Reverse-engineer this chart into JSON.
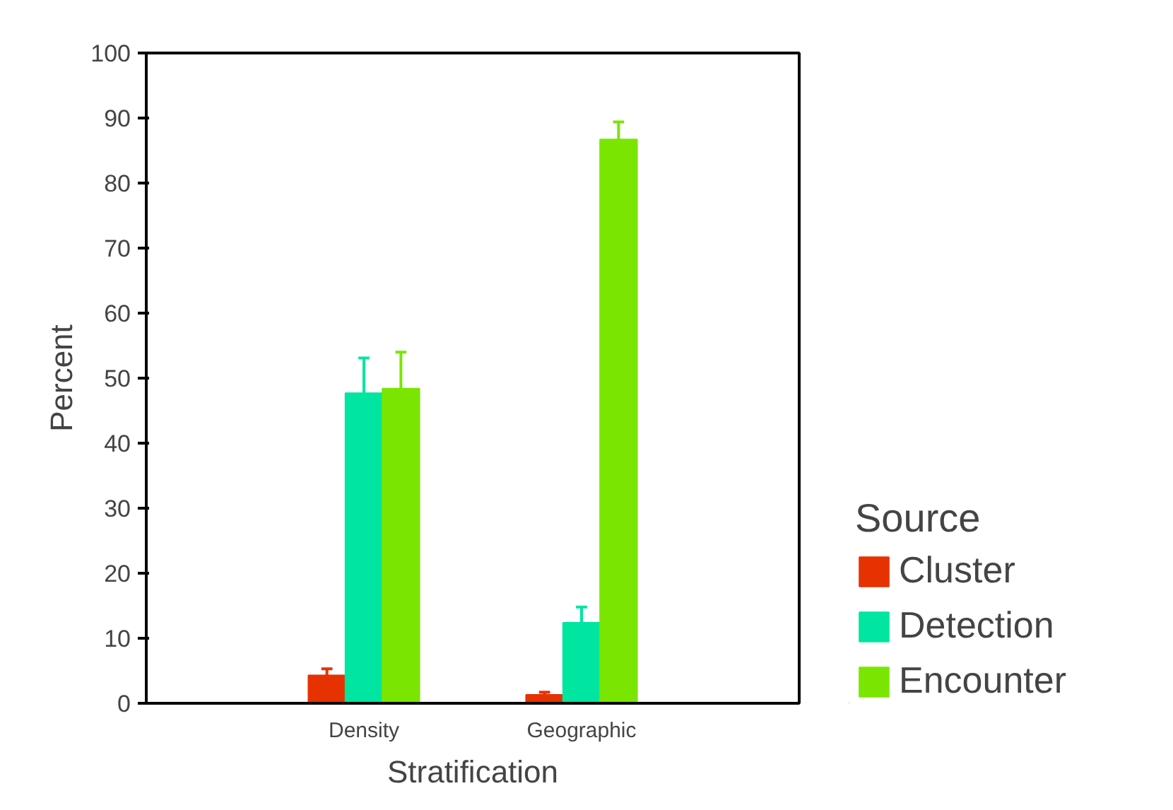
{
  "chart_data": {
    "type": "bar",
    "xlabel": "Stratification",
    "ylabel": "Percent",
    "legend_title": "Source",
    "categories": [
      "Density",
      "Geographic"
    ],
    "series": [
      {
        "name": "Cluster",
        "color": "#e63200",
        "values": [
          4.3,
          1.3
        ],
        "errors": [
          [
            4.3,
            5.3
          ],
          [
            1.3,
            1.7
          ]
        ]
      },
      {
        "name": "Detection",
        "color": "#00e5a0",
        "values": [
          47.7,
          12.4
        ],
        "errors": [
          [
            47.7,
            53.1
          ],
          [
            12.4,
            14.8
          ]
        ]
      },
      {
        "name": "Encounter",
        "color": "#7ae600",
        "values": [
          48.4,
          86.7
        ],
        "errors": [
          [
            48.4,
            54.0
          ],
          [
            86.7,
            89.4
          ]
        ]
      }
    ],
    "ylim": [
      0,
      100
    ],
    "yticks": [
      0,
      10,
      20,
      30,
      40,
      50,
      60,
      70,
      80,
      90,
      100
    ],
    "grid": false,
    "legend": "right"
  }
}
